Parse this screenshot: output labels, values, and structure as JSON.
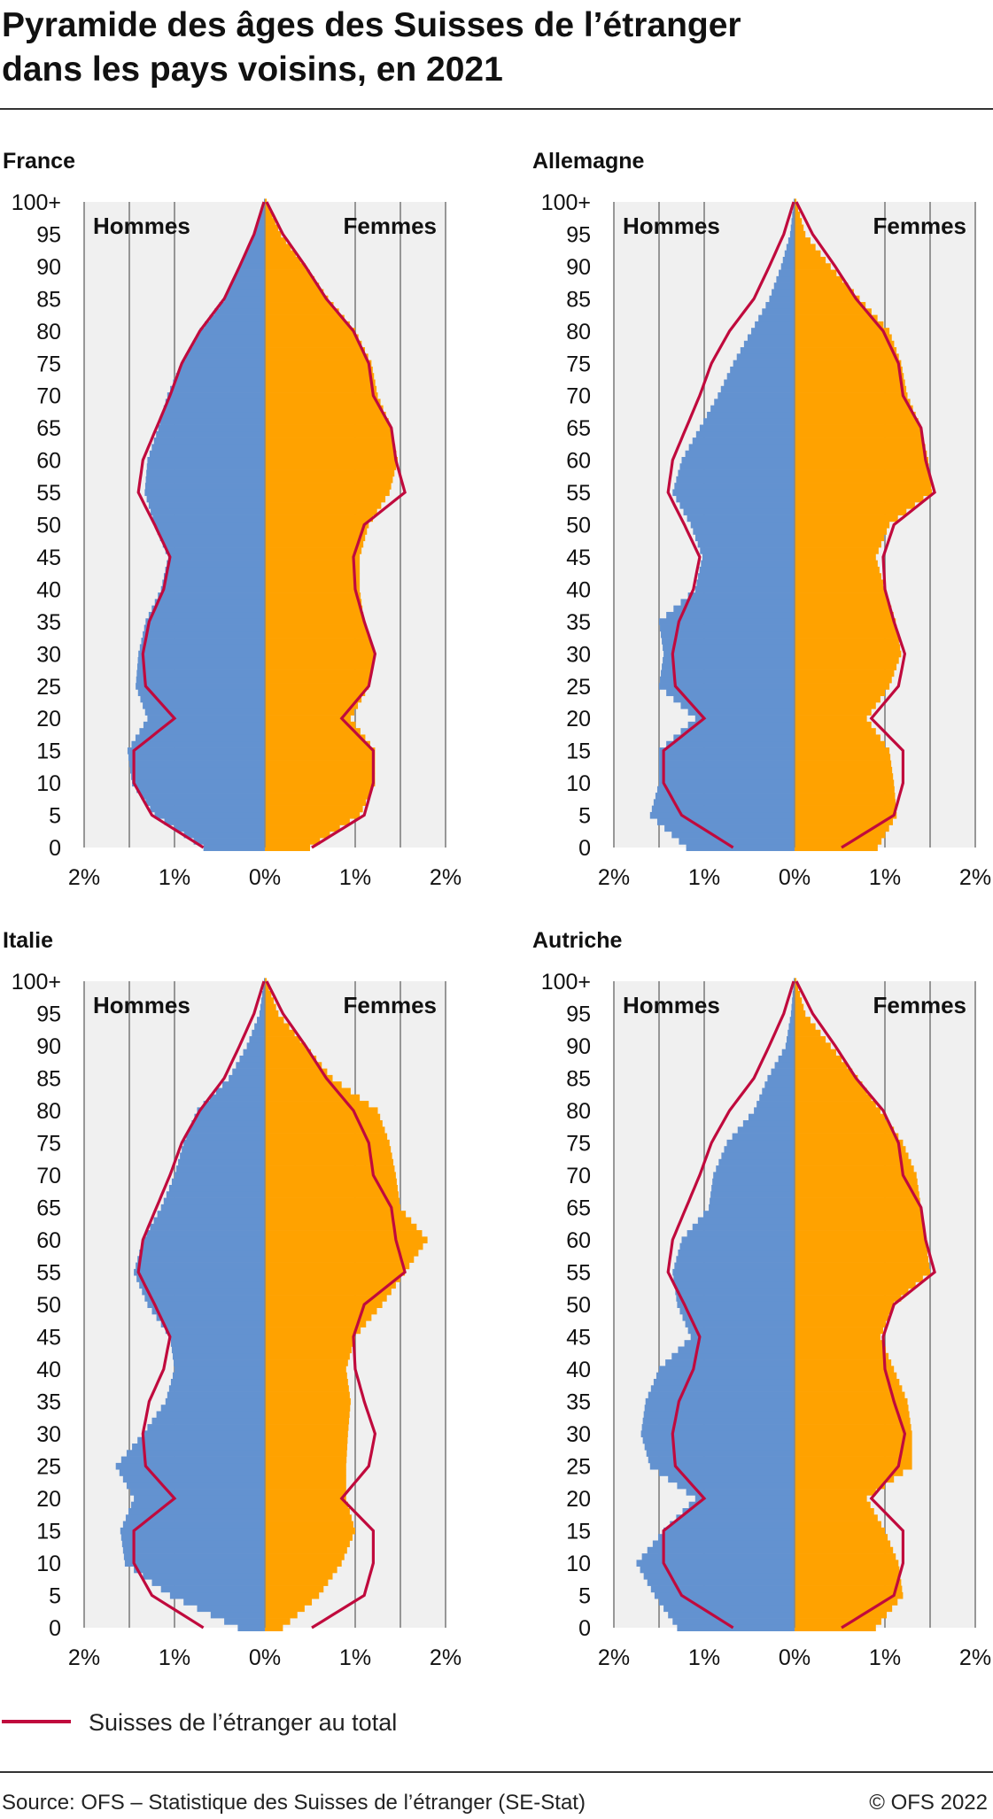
{
  "title_line1": "Pyramide des âges des Suisses de l’étranger",
  "title_line2": "dans les pays voisins, en 2021",
  "side_left": "Hommes",
  "side_right": "Femmes",
  "legend_label": "Suisses de l’étranger au total",
  "source": "Source: OFS – Statistique des Suisses de l’étranger (SE-Stat)",
  "copyright": "© OFS 2022",
  "colors": {
    "men": "#6392d0",
    "women": "#ffa200",
    "total": "#c00a3d",
    "plot_bg": "#f0f0f0",
    "grid": "#7f7f7f"
  },
  "chart_data": [
    {
      "type": "population-pyramid",
      "title": "France",
      "age_labels": [
        "0",
        "5",
        "10",
        "15",
        "20",
        "25",
        "30",
        "35",
        "40",
        "45",
        "50",
        "55",
        "60",
        "65",
        "70",
        "75",
        "80",
        "85",
        "90",
        "95",
        "100+"
      ],
      "x_tick_labels": [
        "2%",
        "1%",
        "0%",
        "1%",
        "2%"
      ],
      "xlim": [
        -2,
        2
      ],
      "ages": [
        0,
        5,
        10,
        15,
        20,
        25,
        30,
        35,
        40,
        45,
        50,
        55,
        60,
        65,
        70,
        75,
        80,
        85,
        90,
        95,
        100
      ],
      "men": [
        0.68,
        1.22,
        1.47,
        1.52,
        1.3,
        1.43,
        1.4,
        1.32,
        1.15,
        1.07,
        1.22,
        1.33,
        1.3,
        1.18,
        1.08,
        0.92,
        0.72,
        0.45,
        0.28,
        0.12,
        0.01
      ],
      "women": [
        0.5,
        1.05,
        1.22,
        1.22,
        0.95,
        1.15,
        1.22,
        1.1,
        1.05,
        1.05,
        1.15,
        1.38,
        1.47,
        1.4,
        1.25,
        1.18,
        1.0,
        0.7,
        0.45,
        0.18,
        0.02
      ],
      "total_men": [
        0.68,
        1.25,
        1.45,
        1.45,
        1.0,
        1.32,
        1.35,
        1.28,
        1.12,
        1.05,
        1.22,
        1.4,
        1.35,
        1.2,
        1.05,
        0.92,
        0.72,
        0.45,
        0.28,
        0.12,
        0.01
      ],
      "total_women": [
        0.52,
        1.1,
        1.2,
        1.2,
        0.85,
        1.15,
        1.22,
        1.1,
        1.0,
        0.98,
        1.1,
        1.55,
        1.45,
        1.4,
        1.2,
        1.15,
        0.98,
        0.68,
        0.45,
        0.2,
        0.02
      ]
    },
    {
      "type": "population-pyramid",
      "title": "Allemagne",
      "age_labels": [
        "0",
        "5",
        "10",
        "15",
        "20",
        "25",
        "30",
        "35",
        "40",
        "45",
        "50",
        "55",
        "60",
        "65",
        "70",
        "75",
        "80",
        "85",
        "90",
        "95",
        "100+"
      ],
      "x_tick_labels": [
        "2%",
        "1%",
        "0%",
        "1%",
        "2%"
      ],
      "xlim": [
        -2,
        2
      ],
      "ages": [
        0,
        5,
        10,
        15,
        20,
        25,
        30,
        35,
        40,
        45,
        50,
        55,
        60,
        65,
        70,
        75,
        80,
        85,
        90,
        95,
        100
      ],
      "men": [
        1.2,
        1.6,
        1.5,
        1.5,
        1.1,
        1.5,
        1.45,
        1.5,
        1.1,
        1.02,
        1.15,
        1.35,
        1.25,
        1.05,
        0.85,
        0.68,
        0.48,
        0.28,
        0.15,
        0.05,
        0.01
      ],
      "women": [
        0.92,
        1.13,
        1.1,
        1.05,
        0.8,
        1.05,
        1.18,
        1.12,
        1.0,
        0.9,
        1.05,
        1.52,
        1.48,
        1.4,
        1.25,
        1.18,
        1.05,
        0.72,
        0.4,
        0.12,
        0.02
      ],
      "total_men": [
        0.68,
        1.25,
        1.45,
        1.45,
        1.0,
        1.32,
        1.35,
        1.28,
        1.12,
        1.05,
        1.22,
        1.4,
        1.35,
        1.2,
        1.05,
        0.92,
        0.72,
        0.45,
        0.28,
        0.12,
        0.01
      ],
      "total_women": [
        0.52,
        1.1,
        1.2,
        1.2,
        0.85,
        1.15,
        1.22,
        1.1,
        1.0,
        0.98,
        1.1,
        1.55,
        1.45,
        1.4,
        1.2,
        1.15,
        0.98,
        0.68,
        0.45,
        0.2,
        0.02
      ]
    },
    {
      "type": "population-pyramid",
      "title": "Italie",
      "age_labels": [
        "0",
        "5",
        "10",
        "15",
        "20",
        "25",
        "30",
        "35",
        "40",
        "45",
        "50",
        "55",
        "60",
        "65",
        "70",
        "75",
        "80",
        "85",
        "90",
        "95",
        "100+"
      ],
      "x_tick_labels": [
        "2%",
        "1%",
        "0%",
        "1%",
        "2%"
      ],
      "xlim": [
        -2,
        2
      ],
      "ages": [
        0,
        5,
        10,
        15,
        20,
        25,
        30,
        35,
        40,
        45,
        50,
        55,
        60,
        65,
        70,
        75,
        80,
        85,
        90,
        95,
        100
      ],
      "men": [
        0.3,
        1.05,
        1.55,
        1.6,
        1.45,
        1.65,
        1.35,
        1.1,
        1.0,
        1.05,
        1.3,
        1.45,
        1.35,
        1.15,
        1.0,
        0.9,
        0.75,
        0.4,
        0.2,
        0.06,
        0.01
      ],
      "women": [
        0.2,
        0.6,
        0.85,
        1.0,
        0.9,
        0.9,
        0.92,
        0.95,
        0.9,
        1.0,
        1.3,
        1.55,
        1.8,
        1.5,
        1.45,
        1.38,
        1.25,
        0.75,
        0.45,
        0.15,
        0.02
      ],
      "total_men": [
        0.68,
        1.25,
        1.45,
        1.45,
        1.0,
        1.32,
        1.35,
        1.28,
        1.12,
        1.05,
        1.22,
        1.4,
        1.35,
        1.2,
        1.05,
        0.92,
        0.72,
        0.45,
        0.28,
        0.12,
        0.01
      ],
      "total_women": [
        0.52,
        1.1,
        1.2,
        1.2,
        0.85,
        1.15,
        1.22,
        1.1,
        1.0,
        0.98,
        1.1,
        1.55,
        1.45,
        1.4,
        1.2,
        1.15,
        0.98,
        0.68,
        0.45,
        0.2,
        0.02
      ]
    },
    {
      "type": "population-pyramid",
      "title": "Autriche",
      "age_labels": [
        "0",
        "5",
        "10",
        "15",
        "20",
        "25",
        "30",
        "35",
        "40",
        "45",
        "50",
        "55",
        "60",
        "65",
        "70",
        "75",
        "80",
        "85",
        "90",
        "95",
        "100+"
      ],
      "x_tick_labels": [
        "2%",
        "1%",
        "0%",
        "1%",
        "2%"
      ],
      "xlim": [
        -2,
        2
      ],
      "ages": [
        0,
        5,
        10,
        15,
        20,
        25,
        30,
        35,
        40,
        45,
        50,
        55,
        60,
        65,
        70,
        75,
        80,
        85,
        90,
        95,
        100
      ],
      "men": [
        1.3,
        1.55,
        1.75,
        1.45,
        1.1,
        1.6,
        1.7,
        1.65,
        1.5,
        1.15,
        1.3,
        1.35,
        1.25,
        0.95,
        0.9,
        0.75,
        0.45,
        0.3,
        0.1,
        0.04,
        0.01
      ],
      "women": [
        0.9,
        1.2,
        1.15,
        1.0,
        0.8,
        1.3,
        1.3,
        1.25,
        1.1,
        0.95,
        1.1,
        1.5,
        1.45,
        1.4,
        1.35,
        1.2,
        0.95,
        0.7,
        0.4,
        0.12,
        0.02
      ],
      "total_men": [
        0.68,
        1.25,
        1.45,
        1.45,
        1.0,
        1.32,
        1.35,
        1.28,
        1.12,
        1.05,
        1.22,
        1.4,
        1.35,
        1.2,
        1.05,
        0.92,
        0.72,
        0.45,
        0.28,
        0.12,
        0.01
      ],
      "total_women": [
        0.52,
        1.1,
        1.2,
        1.2,
        0.85,
        1.15,
        1.22,
        1.1,
        1.0,
        0.98,
        1.1,
        1.55,
        1.45,
        1.4,
        1.2,
        1.15,
        0.98,
        0.68,
        0.45,
        0.2,
        0.02
      ]
    }
  ]
}
